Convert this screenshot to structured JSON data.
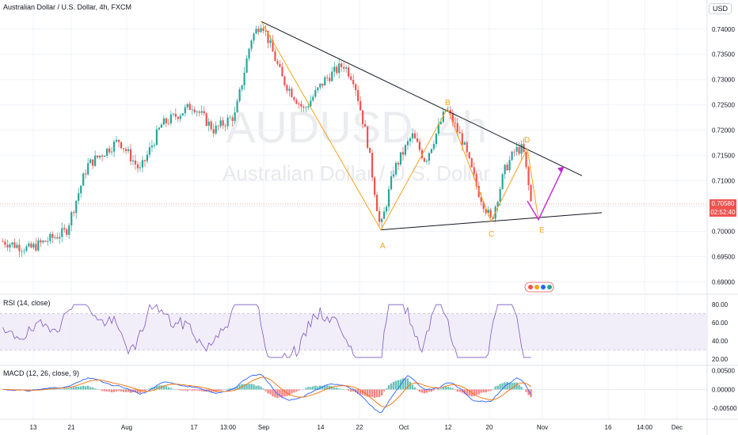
{
  "header": {
    "symbol_title": "Australian Dollar / U.S. Dollar, 4h, FXCM",
    "currency_badge": "USD"
  },
  "watermark": {
    "ticker": "AUDUSD, 4h",
    "name": "Australian Dollar / U.S. Dollar"
  },
  "colors": {
    "up": "#26a69a",
    "down": "#ef5350",
    "trendline": "#131722",
    "pattern": "#f7a21b",
    "projection": "#c026d3",
    "rsi": "#7e57c2",
    "rsi_band": "#ede7f6",
    "macd": "#2962ff",
    "signal": "#ff6d00"
  },
  "chart_data": [
    {
      "type": "candlestick",
      "pane": "price",
      "y_ticks": [
        "0.74000",
        "0.73500",
        "0.73000",
        "0.72500",
        "0.72000",
        "0.71500",
        "0.71000",
        "0.70500",
        "0.70000",
        "0.69500",
        "0.69000"
      ],
      "ylim": [
        0.6885,
        0.7445
      ],
      "current_price": "0.70580",
      "countdown": "02:52:40",
      "pattern_labels": [
        "A",
        "B",
        "C",
        "D",
        "E"
      ],
      "pattern_points": [
        {
          "label": "start",
          "x": 0.0,
          "y": 0.7415
        },
        {
          "label": "A",
          "x": 0.3,
          "y": 0.7003
        },
        {
          "label": "B",
          "x": 0.52,
          "y": 0.7243
        },
        {
          "label": "C",
          "x": 0.615,
          "y": 0.702
        },
        {
          "label": "D",
          "x": 0.69,
          "y": 0.7164
        },
        {
          "label": "E",
          "x": 0.74,
          "y": 0.7023
        }
      ],
      "projection_end": {
        "x": 0.8,
        "y": 0.7128
      },
      "upper_trendline": [
        {
          "x": 0.0,
          "y": 0.7415
        },
        {
          "x": 1.0,
          "y": 0.711
        }
      ],
      "lower_trendline": [
        {
          "x": 0.3,
          "y": 0.7003
        },
        {
          "x": 1.0,
          "y": 0.7037
        }
      ]
    },
    {
      "type": "line",
      "pane": "rsi",
      "label": "RSI (14, close)",
      "y_ticks": [
        "80.00",
        "60.00",
        "40.00",
        "20.00"
      ],
      "ylim": [
        15,
        88
      ],
      "band": [
        30,
        70
      ]
    },
    {
      "type": "line",
      "pane": "macd",
      "label": "MACD (12, 26, close, 9)",
      "y_ticks": [
        "0.00500",
        "0.00000",
        "-0.00500"
      ],
      "ylim": [
        -0.0075,
        0.006
      ]
    }
  ],
  "x_axis": {
    "ticks": [
      "13",
      "21",
      "Aug",
      "17",
      "13:00",
      "Sep",
      "14",
      "22",
      "Oct",
      "12",
      "20",
      "Nov",
      "16",
      "14:00",
      "Dec"
    ]
  }
}
